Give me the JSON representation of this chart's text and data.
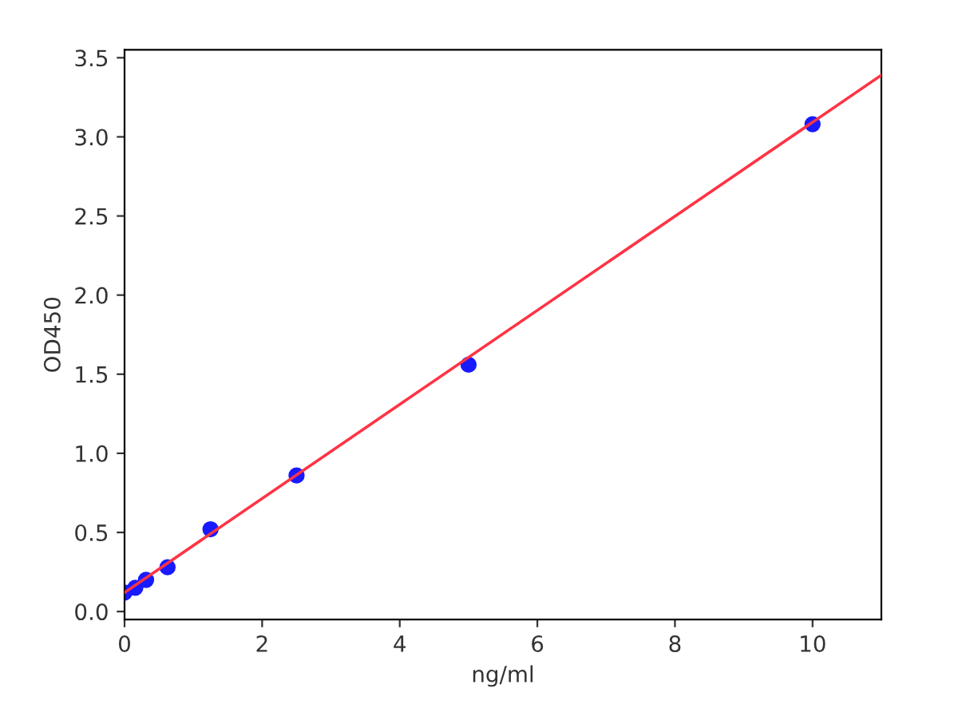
{
  "chart_data": {
    "type": "scatter",
    "xlabel": "ng/ml",
    "ylabel": "OD450",
    "series": [
      {
        "marker": "circle",
        "color": "#1a1aff",
        "x": [
          0,
          0.156,
          0.3125,
          0.625,
          1.25,
          2.5,
          5,
          10
        ],
        "values": [
          0.12,
          0.15,
          0.2,
          0.28,
          0.52,
          0.86,
          1.56,
          3.08
        ]
      },
      {
        "type": "line",
        "color": "#ff3344",
        "x": [
          0,
          11
        ],
        "values": [
          0.12,
          3.39
        ]
      }
    ],
    "xlim": [
      0,
      11
    ],
    "xticks": [
      0,
      2,
      4,
      6,
      8,
      10
    ],
    "ylim": [
      -0.05,
      3.55
    ],
    "yticks": [
      {
        "value": 0,
        "label": "0.0"
      },
      0.5,
      {
        "value": 1,
        "label": "1.0"
      },
      1.5,
      {
        "value": 2,
        "label": "2.0"
      },
      2.5,
      {
        "value": 3,
        "label": "3.0"
      },
      3.5
    ],
    "grid": false,
    "legend": false
  }
}
